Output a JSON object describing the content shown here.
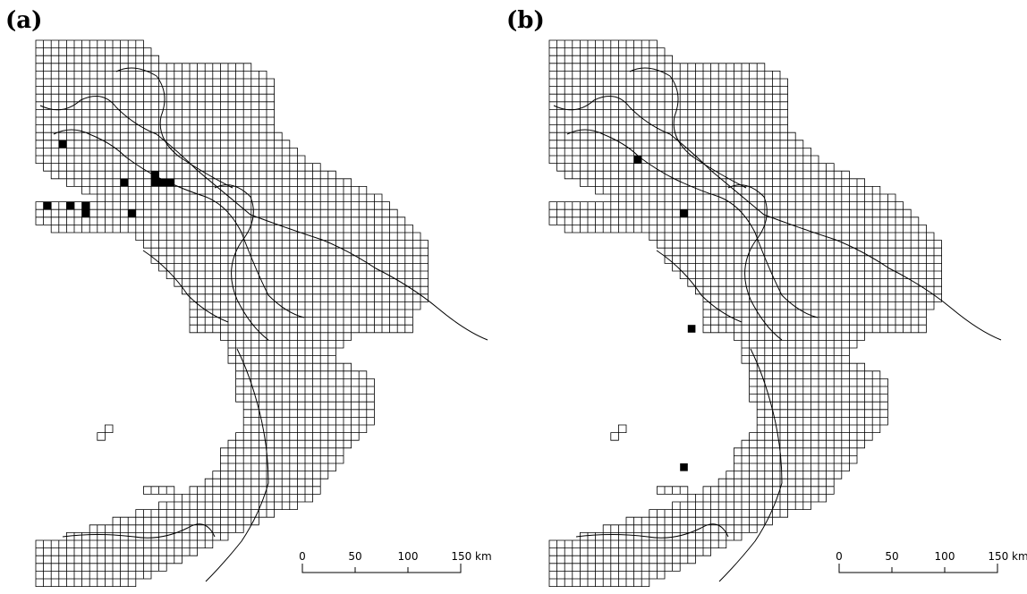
{
  "panels": [
    {
      "label": "(a)",
      "scale_bar": {
        "ticks": [
          "0",
          "50",
          "100",
          "150 km"
        ]
      },
      "filled_cells": [
        [
          3,
          13
        ],
        [
          1,
          21
        ],
        [
          4,
          21
        ],
        [
          6,
          21
        ],
        [
          6,
          22
        ],
        [
          11,
          18
        ],
        [
          15,
          17
        ],
        [
          15,
          18
        ],
        [
          16,
          18
        ],
        [
          17,
          18
        ],
        [
          12,
          22
        ]
      ]
    },
    {
      "label": "(b)",
      "scale_bar": {
        "ticks": [
          "0",
          "50",
          "100",
          "150 km"
        ]
      },
      "filled_cells": [
        [
          11,
          15
        ],
        [
          17,
          22
        ],
        [
          18,
          37
        ],
        [
          17,
          55
        ]
      ]
    }
  ]
}
